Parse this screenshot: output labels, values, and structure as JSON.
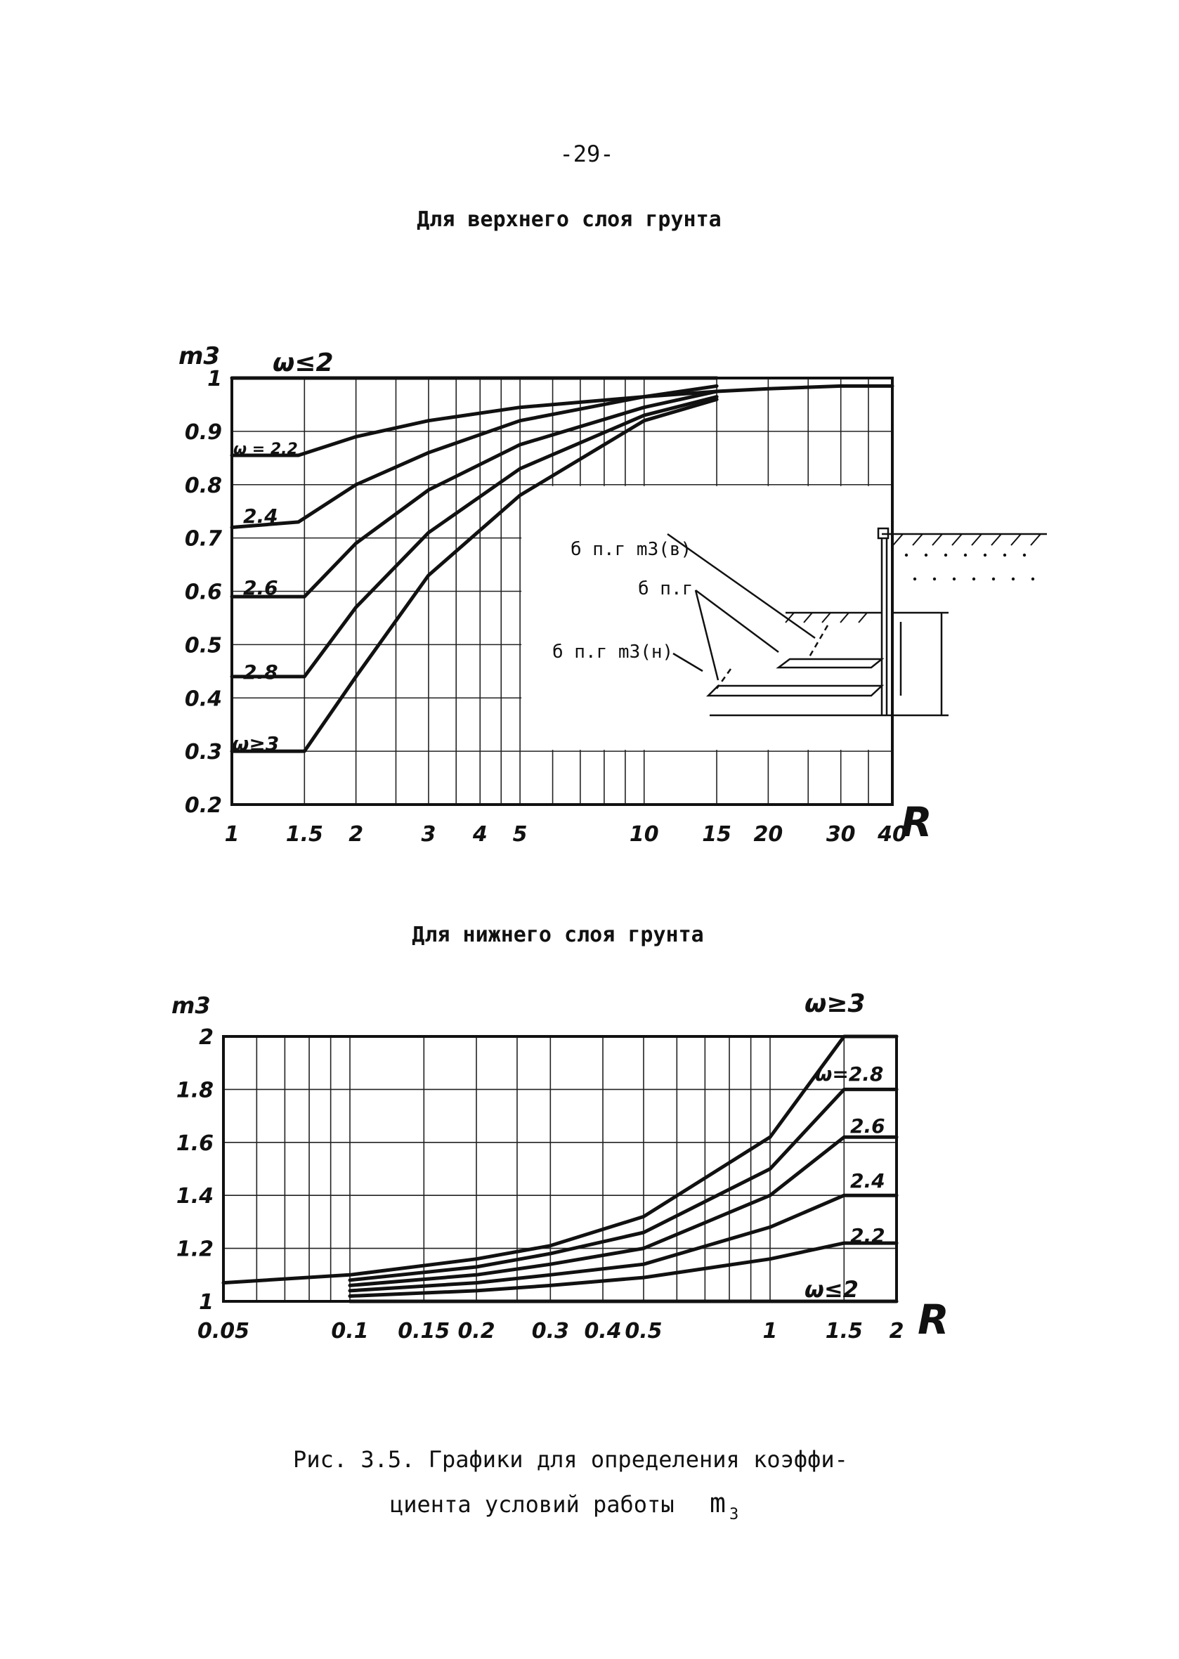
{
  "page": {
    "number": "-29-",
    "caption_line1": "Рис. 3.5. Графики для определения коэффи-",
    "caption_line2": "циента условий работы",
    "caption_symbol": "m",
    "caption_symbol_sub": "3"
  },
  "inset_labels": {
    "upper": "б п.г m3(в)",
    "middle": "б п.г",
    "lower": "б п.г m3(н)"
  },
  "chart_data": [
    {
      "type": "line",
      "title": "Для верхнего слоя грунта",
      "ylabel": "m3",
      "xlabel": "R",
      "x_scale": "log",
      "xlim": [
        1,
        40
      ],
      "ylim": [
        0.2,
        1.0
      ],
      "grid": true,
      "x_ticks": [
        "1",
        "1.5",
        "2",
        "3",
        "4",
        "5",
        "10",
        "15",
        "20",
        "30",
        "40"
      ],
      "y_ticks": [
        "0.2",
        "0.3",
        "0.4",
        "0.5",
        "0.6",
        "0.7",
        "0.8",
        "0.9",
        "1"
      ],
      "annotations": [
        "ω≤2",
        "ω = 2.2",
        "2.4",
        "2.6",
        "2.8",
        "ω≥3"
      ],
      "series": [
        {
          "name": "ω≤2",
          "x": [
            1,
            15
          ],
          "y": [
            1.0,
            1.0
          ]
        },
        {
          "name": "ω = 2.2",
          "x": [
            1,
            1.45,
            2,
            3,
            5,
            10,
            15,
            20,
            30,
            40
          ],
          "y": [
            0.855,
            0.855,
            0.89,
            0.92,
            0.945,
            0.965,
            0.975,
            0.98,
            0.985,
            0.985
          ]
        },
        {
          "name": "2.4",
          "x": [
            1,
            1.45,
            2,
            3,
            5,
            10,
            15
          ],
          "y": [
            0.72,
            0.73,
            0.8,
            0.86,
            0.92,
            0.965,
            0.985
          ]
        },
        {
          "name": "2.6",
          "x": [
            1,
            1.5,
            2,
            3,
            5,
            10,
            15
          ],
          "y": [
            0.59,
            0.59,
            0.69,
            0.79,
            0.875,
            0.945,
            0.975
          ]
        },
        {
          "name": "2.8",
          "x": [
            1,
            1.5,
            2,
            3,
            5,
            10,
            15
          ],
          "y": [
            0.44,
            0.44,
            0.57,
            0.71,
            0.83,
            0.93,
            0.965
          ]
        },
        {
          "name": "ω≥3",
          "x": [
            1,
            1.5,
            2,
            3,
            5,
            10,
            15
          ],
          "y": [
            0.3,
            0.3,
            0.44,
            0.63,
            0.78,
            0.92,
            0.96
          ]
        }
      ]
    },
    {
      "type": "line",
      "title": "Для нижнего слоя грунта",
      "ylabel": "m3",
      "xlabel": "R",
      "x_scale": "log",
      "xlim": [
        0.05,
        2
      ],
      "ylim": [
        1.0,
        2.0
      ],
      "grid": true,
      "x_ticks": [
        "0.05",
        "0.1",
        "0.15",
        "0.2",
        "0.3",
        "0.4",
        "0.5",
        "1",
        "1.5",
        "2"
      ],
      "y_ticks": [
        "1",
        "1.2",
        "1.4",
        "1.6",
        "1.8",
        "2"
      ],
      "annotations": [
        "ω≥3",
        "ω=2.8",
        "2.6",
        "2.4",
        "2.2",
        "ω≤2"
      ],
      "series": [
        {
          "name": "ω≥3",
          "x": [
            0.05,
            0.1,
            0.2,
            0.3,
            0.5,
            1,
            1.5,
            2
          ],
          "y": [
            1.07,
            1.1,
            1.16,
            1.21,
            1.32,
            1.62,
            2.0,
            2.0
          ]
        },
        {
          "name": "ω=2.8",
          "x": [
            0.1,
            0.2,
            0.3,
            0.5,
            1,
            1.5,
            2
          ],
          "y": [
            1.08,
            1.13,
            1.18,
            1.26,
            1.5,
            1.8,
            1.8
          ]
        },
        {
          "name": "2.6",
          "x": [
            0.1,
            0.2,
            0.3,
            0.5,
            1,
            1.5,
            2
          ],
          "y": [
            1.06,
            1.1,
            1.14,
            1.2,
            1.4,
            1.62,
            1.62
          ]
        },
        {
          "name": "2.4",
          "x": [
            0.1,
            0.2,
            0.3,
            0.5,
            1,
            1.5,
            2
          ],
          "y": [
            1.04,
            1.07,
            1.1,
            1.14,
            1.28,
            1.4,
            1.4
          ]
        },
        {
          "name": "2.2",
          "x": [
            0.1,
            0.2,
            0.3,
            0.5,
            1,
            1.5,
            2
          ],
          "y": [
            1.02,
            1.04,
            1.06,
            1.09,
            1.16,
            1.22,
            1.22
          ]
        },
        {
          "name": "ω≤2",
          "x": [
            0.1,
            2
          ],
          "y": [
            1.0,
            1.0
          ]
        }
      ]
    }
  ]
}
